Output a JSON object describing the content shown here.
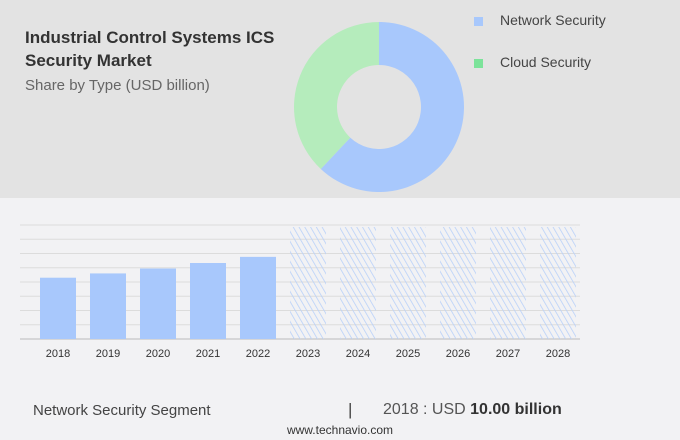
{
  "header": {
    "title": "Industrial Control Systems ICS Security Market",
    "subtitle": "Share by Type (USD billion)"
  },
  "chart_data": [
    {
      "type": "pie",
      "donut": true,
      "series": [
        {
          "name": "Network Security",
          "share": 62,
          "color": "#a8c8fc"
        },
        {
          "name": "Cloud Security",
          "share": 38,
          "color": "#b5ecbc"
        }
      ],
      "legend_colors": [
        "#a8c8fc",
        "#7ce39a"
      ],
      "legend": "right"
    },
    {
      "type": "bar",
      "categories": [
        "2018",
        "2019",
        "2020",
        "2021",
        "2022",
        "2023",
        "2024",
        "2025",
        "2026",
        "2027",
        "2028"
      ],
      "values": [
        10.0,
        10.7,
        11.5,
        12.4,
        13.4,
        null,
        null,
        null,
        null,
        null,
        null
      ],
      "forecast_from": "2023",
      "ylim": [
        0,
        18.6
      ],
      "grid": true,
      "color": "#a8c8fc"
    }
  ],
  "footer": {
    "segment": "Network Security Segment",
    "separator": "|",
    "year_value": "2018 : USD ",
    "value_bold": "10.00 billion",
    "url": "www.technavio.com"
  }
}
